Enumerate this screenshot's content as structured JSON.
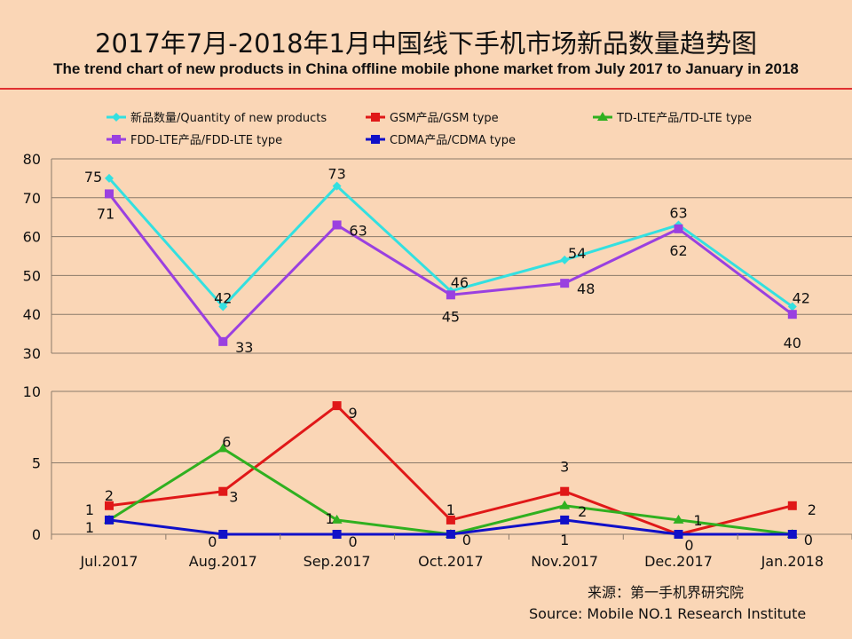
{
  "chart_data": {
    "type": "line",
    "title": "2017年7月-2018年1月中国线下手机市场新品数量趋势图",
    "subtitle": "The trend chart of new products in China offline mobile phone market from July 2017 to January in 2018",
    "categories": [
      "Jul.2017",
      "Aug.2017",
      "Sep.2017",
      "Oct.2017",
      "Nov.2017",
      "Dec.2017",
      "Jan.2018"
    ],
    "panels": [
      {
        "ylim": [
          30,
          80
        ],
        "yticks": [
          30,
          40,
          50,
          60,
          70,
          80
        ],
        "series_indices": [
          0,
          3
        ]
      },
      {
        "ylim": [
          0,
          10
        ],
        "yticks": [
          0,
          5,
          10
        ],
        "series_indices": [
          1,
          2,
          4
        ]
      }
    ],
    "series": [
      {
        "name": "新品数量/Quantity of new products",
        "color": "#33e0e0",
        "marker": "diamond",
        "values": [
          75,
          42,
          73,
          46,
          54,
          63,
          42
        ]
      },
      {
        "name": "GSM产品/GSM type",
        "color": "#e01818",
        "marker": "square",
        "values": [
          2,
          3,
          9,
          1,
          3,
          0,
          2
        ]
      },
      {
        "name": "TD-LTE产品/TD-LTE type",
        "color": "#30b020",
        "marker": "triangle",
        "values": [
          1,
          6,
          1,
          0,
          2,
          1,
          0
        ]
      },
      {
        "name": "FDD-LTE产品/FDD-LTE type",
        "color": "#9a40e0",
        "marker": "square",
        "values": [
          71,
          33,
          63,
          45,
          48,
          62,
          40
        ]
      },
      {
        "name": "CDMA产品/CDMA type",
        "color": "#1010c8",
        "marker": "square",
        "values": [
          1,
          0,
          0,
          0,
          1,
          0,
          0
        ]
      }
    ],
    "legend_position": "top",
    "grid": "horizontal"
  },
  "source_cn": "来源：第一手机界研究院",
  "source_en": "Source: Mobile NO.1 Research Institute"
}
